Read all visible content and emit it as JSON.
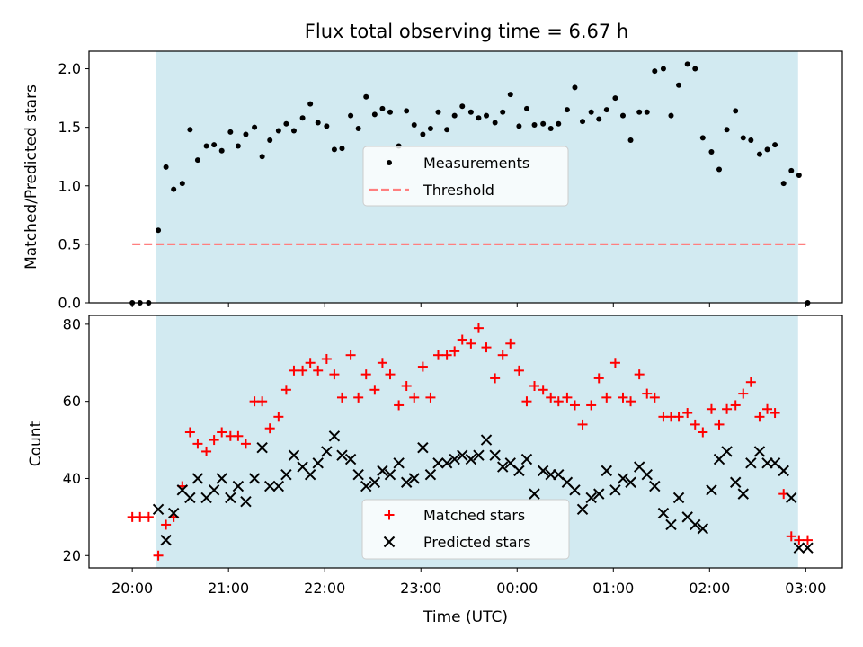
{
  "title": "Flux total observing time = 6.67 h",
  "colors": {
    "observing_band": "#add8e6",
    "measurement": "#000000",
    "threshold": "#ff7f7f",
    "matched": "#ff0000",
    "predicted": "#000000"
  },
  "chart_data": [
    {
      "type": "scatter",
      "ylabel": "Matched/Predicted stars",
      "ylim": [
        0,
        2.15
      ],
      "yticks": [
        0.0,
        0.5,
        1.0,
        1.5,
        2.0
      ],
      "yticklabels": [
        "0.0",
        "0.5",
        "1.0",
        "1.5",
        "2.0"
      ],
      "xlim_hours": [
        19.55,
        27.38
      ],
      "observing_band_hours": [
        20.25,
        26.92
      ],
      "threshold": 0.5,
      "threshold_range_hours": [
        20.0,
        27.0
      ],
      "legend": [
        "Measurements",
        "Threshold"
      ],
      "legend_position": "center",
      "series": [
        {
          "name": "Measurements",
          "x": [
            20.0,
            20.08,
            20.17,
            20.27,
            20.35,
            20.43,
            20.52,
            20.6,
            20.68,
            20.77,
            20.85,
            20.93,
            21.02,
            21.1,
            21.18,
            21.27,
            21.35,
            21.43,
            21.52,
            21.6,
            21.68,
            21.77,
            21.85,
            21.93,
            22.02,
            22.1,
            22.18,
            22.27,
            22.35,
            22.43,
            22.52,
            22.6,
            22.68,
            22.77,
            22.85,
            22.93,
            23.02,
            23.1,
            23.18,
            23.27,
            23.35,
            23.43,
            23.52,
            23.6,
            23.68,
            23.77,
            23.85,
            23.93,
            24.02,
            24.1,
            24.18,
            24.27,
            24.35,
            24.43,
            24.52,
            24.6,
            24.68,
            24.77,
            24.85,
            24.93,
            25.02,
            25.1,
            25.18,
            25.27,
            25.35,
            25.43,
            25.52,
            25.6,
            25.68,
            25.77,
            25.85,
            25.93,
            26.02,
            26.1,
            26.18,
            26.27,
            26.35,
            26.43,
            26.52,
            26.6,
            26.68,
            26.77,
            26.85,
            26.93,
            27.02
          ],
          "y": [
            0.0,
            0.0,
            0.0,
            0.62,
            1.16,
            0.97,
            1.02,
            1.48,
            1.22,
            1.34,
            1.35,
            1.3,
            1.46,
            1.34,
            1.44,
            1.5,
            1.25,
            1.39,
            1.47,
            1.53,
            1.47,
            1.58,
            1.7,
            1.54,
            1.51,
            1.31,
            1.32,
            1.6,
            1.49,
            1.76,
            1.61,
            1.66,
            1.63,
            1.34,
            1.64,
            1.52,
            1.44,
            1.49,
            1.63,
            1.48,
            1.6,
            1.68,
            1.63,
            1.58,
            1.6,
            1.54,
            1.63,
            1.78,
            1.51,
            1.66,
            1.52,
            1.53,
            1.49,
            1.53,
            1.65,
            1.84,
            1.55,
            1.63,
            1.57,
            1.65,
            1.75,
            1.6,
            1.39,
            1.63,
            1.63,
            1.98,
            2.0,
            1.6,
            1.86,
            2.04,
            2.0,
            1.41,
            1.29,
            1.14,
            1.48,
            1.64,
            1.41,
            1.39,
            1.27,
            1.31,
            1.35,
            1.02,
            1.13,
            1.09,
            0.0
          ]
        }
      ]
    },
    {
      "type": "scatter",
      "ylabel": "Count",
      "xlabel": "Time (UTC)",
      "ylim": [
        16.8,
        82.3
      ],
      "yticks": [
        20,
        40,
        60,
        80
      ],
      "yticklabels": [
        "20",
        "40",
        "60",
        "80"
      ],
      "xlim_hours": [
        19.55,
        27.38
      ],
      "xticks_hours": [
        20,
        21,
        22,
        23,
        24,
        25,
        26,
        27
      ],
      "xticklabels": [
        "20:00",
        "21:00",
        "22:00",
        "23:00",
        "00:00",
        "01:00",
        "02:00",
        "03:00"
      ],
      "observing_band_hours": [
        20.25,
        26.92
      ],
      "legend": [
        "Matched stars",
        "Predicted stars"
      ],
      "legend_position": "lower center",
      "series": [
        {
          "name": "Matched stars",
          "marker": "+",
          "x": [
            20.0,
            20.08,
            20.17,
            20.27,
            20.35,
            20.43,
            20.52,
            20.6,
            20.68,
            20.77,
            20.85,
            20.93,
            21.02,
            21.1,
            21.18,
            21.27,
            21.35,
            21.43,
            21.52,
            21.6,
            21.68,
            21.77,
            21.85,
            21.93,
            22.02,
            22.1,
            22.18,
            22.27,
            22.35,
            22.43,
            22.52,
            22.6,
            22.68,
            22.77,
            22.85,
            22.93,
            23.02,
            23.1,
            23.18,
            23.27,
            23.35,
            23.43,
            23.52,
            23.6,
            23.68,
            23.77,
            23.85,
            23.93,
            24.02,
            24.1,
            24.18,
            24.27,
            24.35,
            24.43,
            24.52,
            24.6,
            24.68,
            24.77,
            24.85,
            24.93,
            25.02,
            25.1,
            25.18,
            25.27,
            25.35,
            25.43,
            25.52,
            25.6,
            25.68,
            25.77,
            25.85,
            25.93,
            26.02,
            26.1,
            26.18,
            26.27,
            26.35,
            26.43,
            26.52,
            26.6,
            26.68,
            26.77,
            26.85,
            26.93,
            27.02
          ],
          "y": [
            30,
            30,
            30,
            20,
            28,
            30,
            38,
            52,
            49,
            47,
            50,
            52,
            51,
            51,
            49,
            60,
            60,
            53,
            56,
            63,
            68,
            68,
            70,
            68,
            71,
            67,
            61,
            72,
            61,
            67,
            63,
            70,
            67,
            59,
            64,
            61,
            69,
            61,
            72,
            72,
            73,
            76,
            75,
            79,
            74,
            66,
            72,
            75,
            68,
            60,
            64,
            63,
            61,
            60,
            61,
            59,
            54,
            59,
            66,
            61,
            70,
            61,
            60,
            67,
            62,
            61,
            56,
            56,
            56,
            57,
            54,
            52,
            58,
            54,
            58,
            59,
            62,
            65,
            56,
            58,
            57,
            36,
            25,
            24,
            24
          ]
        },
        {
          "name": "Predicted stars",
          "marker": "x",
          "x": [
            20.27,
            20.35,
            20.43,
            20.52,
            20.6,
            20.68,
            20.77,
            20.85,
            20.93,
            21.02,
            21.1,
            21.18,
            21.27,
            21.35,
            21.43,
            21.52,
            21.6,
            21.68,
            21.77,
            21.85,
            21.93,
            22.02,
            22.1,
            22.18,
            22.27,
            22.35,
            22.43,
            22.52,
            22.6,
            22.68,
            22.77,
            22.85,
            22.93,
            23.02,
            23.1,
            23.18,
            23.27,
            23.35,
            23.43,
            23.52,
            23.6,
            23.68,
            23.77,
            23.85,
            23.93,
            24.02,
            24.1,
            24.18,
            24.27,
            24.35,
            24.43,
            24.52,
            24.6,
            24.68,
            24.77,
            24.85,
            24.93,
            25.02,
            25.1,
            25.18,
            25.27,
            25.35,
            25.43,
            25.52,
            25.6,
            25.68,
            25.77,
            25.85,
            25.93,
            26.02,
            26.1,
            26.18,
            26.27,
            26.35,
            26.43,
            26.52,
            26.6,
            26.68,
            26.77,
            26.85,
            26.93,
            27.02
          ],
          "y": [
            32,
            24,
            31,
            37,
            35,
            40,
            35,
            37,
            40,
            35,
            38,
            34,
            40,
            48,
            38,
            38,
            41,
            46,
            43,
            41,
            44,
            47,
            51,
            46,
            45,
            41,
            38,
            39,
            42,
            41,
            44,
            39,
            40,
            48,
            41,
            44,
            44,
            45,
            46,
            45,
            46,
            50,
            46,
            43,
            44,
            42,
            45,
            36,
            42,
            41,
            41,
            39,
            37,
            32,
            35,
            36,
            42,
            37,
            40,
            39,
            43,
            41,
            38,
            31,
            28,
            35,
            30,
            28,
            27,
            37,
            45,
            47,
            39,
            36,
            44,
            47,
            44,
            44,
            42,
            35,
            22,
            22
          ]
        }
      ]
    }
  ]
}
